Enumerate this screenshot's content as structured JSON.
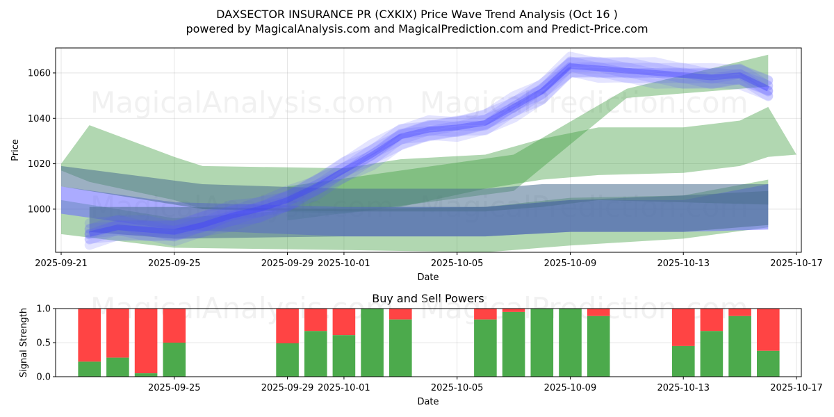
{
  "chart_data": [
    {
      "type": "area",
      "title_line1": "DAXSECTOR INSURANCE PR (CXKIX) Price Wave Trend Analysis (Oct 16 )",
      "title_line2": "powered by MagicalAnalysis.com and MagicalPrediction.com and Predict-Price.com",
      "xlabel": "Date",
      "ylabel": "Price",
      "xlim": [
        "2025-09-21",
        "2025-10-17"
      ],
      "ylim": [
        981,
        1071
      ],
      "x_ticks": [
        "2025-09-21",
        "2025-09-25",
        "2025-09-29",
        "2025-10-01",
        "2025-10-05",
        "2025-10-09",
        "2025-10-13",
        "2025-10-17"
      ],
      "y_ticks": [
        1000,
        1020,
        1040,
        1060
      ],
      "grid": true,
      "price_wave": {
        "name": "price wave (blue)",
        "x": [
          "2025-09-22",
          "2025-09-23",
          "2025-09-24",
          "2025-09-25",
          "2025-09-26",
          "2025-09-27",
          "2025-09-28",
          "2025-09-29",
          "2025-09-30",
          "2025-10-01",
          "2025-10-02",
          "2025-10-03",
          "2025-10-04",
          "2025-10-05",
          "2025-10-06",
          "2025-10-07",
          "2025-10-08",
          "2025-10-09",
          "2025-10-10",
          "2025-10-11",
          "2025-10-12",
          "2025-10-13",
          "2025-10-14",
          "2025-10-15",
          "2025-10-16"
        ],
        "y": [
          989,
          992,
          991,
          990,
          993,
          997,
          1000,
          1004,
          1010,
          1017,
          1024,
          1032,
          1035,
          1036,
          1038,
          1045,
          1052,
          1063,
          1062,
          1061,
          1060,
          1059,
          1058,
          1059,
          1053
        ]
      },
      "green_bands": [
        {
          "name": "green band 1",
          "x": [
            "2025-09-21",
            "2025-09-22",
            "2025-09-25",
            "2025-09-26",
            "2025-10-01",
            "2025-10-03",
            "2025-10-06",
            "2025-10-08",
            "2025-10-10",
            "2025-10-13",
            "2025-10-15",
            "2025-10-16",
            "2025-10-17"
          ],
          "upper": [
            1020,
            1037,
            1023,
            1019,
            1018,
            1022,
            1024,
            1031,
            1036,
            1036,
            1039,
            1045,
            1024
          ],
          "lower": [
            1017,
            1012,
            1004,
            1000,
            998,
            1001,
            1009,
            1013,
            1015,
            1016,
            1019,
            1023,
            1024
          ]
        },
        {
          "name": "green band 2",
          "x": [
            "2025-09-21",
            "2025-09-25",
            "2025-10-01",
            "2025-10-06",
            "2025-10-09",
            "2025-10-13",
            "2025-10-16"
          ],
          "upper": [
            1004,
            996,
            1001,
            1001,
            1005,
            1006,
            1013
          ],
          "lower": [
            989,
            983,
            982,
            981,
            984,
            987,
            992
          ]
        },
        {
          "name": "green band 3",
          "x": [
            "2025-09-29",
            "2025-10-07",
            "2025-10-11",
            "2025-10-16"
          ],
          "upper": [
            1010,
            1024,
            1053,
            1068
          ],
          "lower": [
            995,
            1008,
            1049,
            1054
          ]
        }
      ],
      "blue_bands": [
        {
          "name": "blue band 1",
          "x": [
            "2025-09-21",
            "2025-09-25",
            "2025-10-01",
            "2025-10-06",
            "2025-10-09",
            "2025-10-13",
            "2025-10-16"
          ],
          "upper": [
            1010,
            1003,
            1001,
            1001,
            1004,
            1004,
            1011
          ],
          "lower": [
            998,
            991,
            988,
            988,
            990,
            990,
            991
          ]
        },
        {
          "name": "steel band 1",
          "x": [
            "2025-09-21",
            "2025-09-26",
            "2025-10-01",
            "2025-10-06",
            "2025-10-08",
            "2025-10-10",
            "2025-10-16"
          ],
          "upper": [
            1019,
            1011,
            1009,
            1009,
            1011,
            1011,
            1011
          ],
          "lower": [
            1010,
            1000,
            999,
            999,
            1001,
            1004,
            1002
          ]
        },
        {
          "name": "steel band 2",
          "x": [
            "2025-09-22",
            "2025-09-25",
            "2025-10-01",
            "2025-10-06",
            "2025-10-09",
            "2025-10-13",
            "2025-10-16"
          ],
          "upper": [
            1001,
            1001,
            1000,
            1001,
            1004,
            1006,
            1008
          ],
          "lower": [
            990,
            987,
            988,
            988,
            990,
            990,
            993
          ]
        }
      ],
      "watermarks": [
        "MagicalAnalysis.com",
        "MagicalPrediction.com"
      ]
    },
    {
      "type": "bar",
      "title": "Buy and Sell Powers",
      "xlabel": "Date",
      "ylabel": "Signal Strength",
      "xlim": [
        "2025-09-21",
        "2025-10-17"
      ],
      "ylim": [
        0,
        1.0
      ],
      "x_ticks": [
        "2025-09-25",
        "2025-09-29",
        "2025-10-01",
        "2025-10-05",
        "2025-10-09",
        "2025-10-13",
        "2025-10-17"
      ],
      "y_ticks": [
        "0.0",
        "0.5",
        "1.0"
      ],
      "colors": {
        "buy": "#4caa4c",
        "sell": "#ff4444"
      },
      "dates": [
        "2025-09-22",
        "2025-09-23",
        "2025-09-24",
        "2025-09-25",
        "2025-09-29",
        "2025-09-30",
        "2025-10-01",
        "2025-10-02",
        "2025-10-03",
        "2025-10-06",
        "2025-10-07",
        "2025-10-08",
        "2025-10-09",
        "2025-10-10",
        "2025-10-13",
        "2025-10-14",
        "2025-10-15",
        "2025-10-16"
      ],
      "buy": [
        0.22,
        0.28,
        0.05,
        0.5,
        0.49,
        0.67,
        0.61,
        1.0,
        0.84,
        0.84,
        0.95,
        1.0,
        1.0,
        0.89,
        0.45,
        0.67,
        0.89,
        0.38
      ],
      "watermarks": [
        "MagicalAnalysis.com",
        "MagicalPrediction.com"
      ]
    }
  ]
}
